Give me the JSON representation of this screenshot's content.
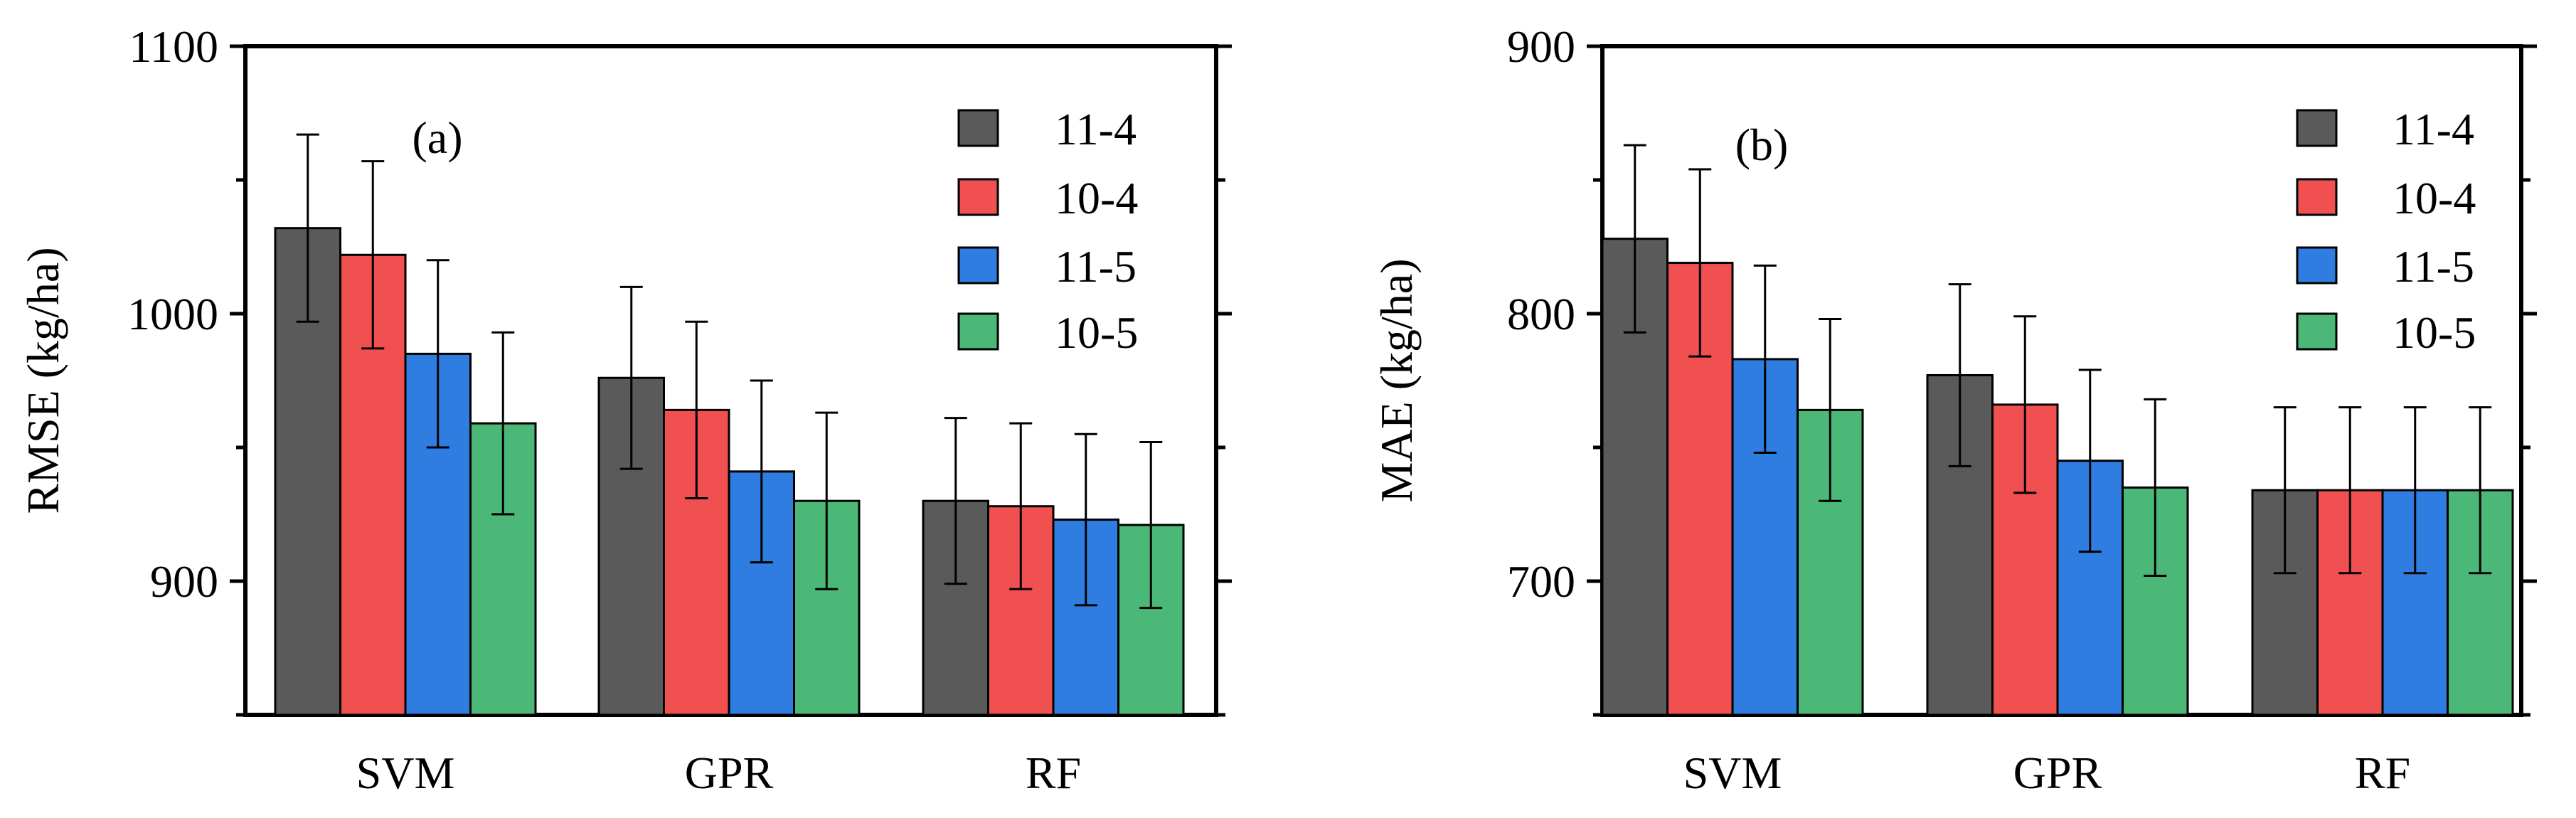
{
  "figure": {
    "panels": [
      "(a)",
      "(b)"
    ]
  },
  "chart_data": [
    {
      "type": "bar",
      "panel_label": "(a)",
      "title": "",
      "xlabel": "",
      "ylabel": "RMSE (kg/ha)",
      "ylim": [
        850,
        1100
      ],
      "yticks": [
        900,
        1000,
        1100
      ],
      "ytick_labels": [
        "900",
        "1000",
        "1100"
      ],
      "categories": [
        "SVM",
        "GPR",
        "RF"
      ],
      "legend_position": "top-right",
      "series": [
        {
          "name": "11-4",
          "color": "#5a5a5a",
          "values": [
            1032,
            976,
            930
          ],
          "errors": [
            35,
            34,
            31
          ]
        },
        {
          "name": "10-4",
          "color": "#f05050",
          "values": [
            1022,
            964,
            928
          ],
          "errors": [
            35,
            33,
            31
          ]
        },
        {
          "name": "11-5",
          "color": "#2f7de1",
          "values": [
            985,
            941,
            923
          ],
          "errors": [
            35,
            34,
            32
          ]
        },
        {
          "name": "10-5",
          "color": "#4cb878",
          "values": [
            959,
            930,
            921
          ],
          "errors": [
            34,
            33,
            31
          ]
        }
      ]
    },
    {
      "type": "bar",
      "panel_label": "(b)",
      "title": "",
      "xlabel": "",
      "ylabel": "MAE (kg/ha)",
      "ylim": [
        650,
        900
      ],
      "yticks": [
        700,
        800,
        900
      ],
      "ytick_labels": [
        "700",
        "800",
        "900"
      ],
      "categories": [
        "SVM",
        "GPR",
        "RF"
      ],
      "legend_position": "top-right",
      "series": [
        {
          "name": "11-4",
          "color": "#5a5a5a",
          "values": [
            828,
            777,
            734
          ],
          "errors": [
            35,
            34,
            31
          ]
        },
        {
          "name": "10-4",
          "color": "#f05050",
          "values": [
            819,
            766,
            734
          ],
          "errors": [
            35,
            33,
            31
          ]
        },
        {
          "name": "11-5",
          "color": "#2f7de1",
          "values": [
            783,
            745,
            734
          ],
          "errors": [
            35,
            34,
            31
          ]
        },
        {
          "name": "10-5",
          "color": "#4cb878",
          "values": [
            764,
            735,
            734
          ],
          "errors": [
            34,
            33,
            31
          ]
        }
      ]
    }
  ]
}
